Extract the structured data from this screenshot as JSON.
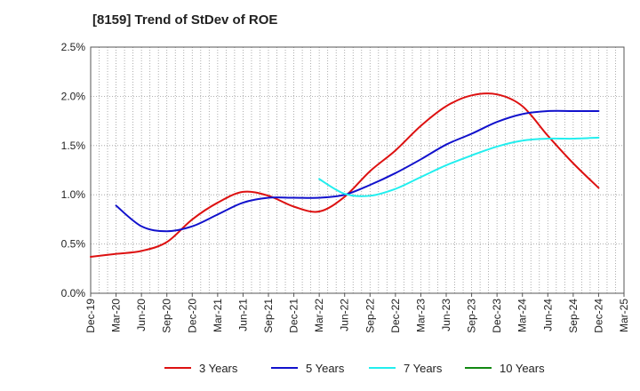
{
  "chart_data": {
    "type": "line",
    "title": "[8159]  Trend of StDev of ROE",
    "x": [
      "Dec-19",
      "Mar-20",
      "Jun-20",
      "Sep-20",
      "Dec-20",
      "Mar-21",
      "Jun-21",
      "Sep-21",
      "Dec-21",
      "Mar-22",
      "Jun-22",
      "Sep-22",
      "Dec-22",
      "Mar-23",
      "Jun-23",
      "Sep-23",
      "Dec-23",
      "Mar-24",
      "Jun-24",
      "Sep-24",
      "Dec-24",
      "Mar-25"
    ],
    "y_ticks": [
      "0.0%",
      "0.5%",
      "1.0%",
      "1.5%",
      "2.0%",
      "2.5%"
    ],
    "ylim": [
      0,
      2.5
    ],
    "yunit": "%",
    "grid": "vertical and horizontal dotted",
    "legend_position": "bottom",
    "series": [
      {
        "name": "3 Years",
        "color": "#dd1111",
        "values": [
          0.37,
          0.4,
          0.43,
          0.52,
          0.75,
          0.92,
          1.03,
          0.99,
          0.88,
          0.83,
          0.98,
          1.24,
          1.45,
          1.7,
          1.9,
          2.01,
          2.02,
          1.9,
          1.6,
          1.32,
          1.07,
          null
        ]
      },
      {
        "name": "5 Years",
        "color": "#1111cc",
        "values": [
          null,
          0.89,
          0.68,
          0.63,
          0.68,
          0.8,
          0.92,
          0.97,
          0.97,
          0.97,
          1.0,
          1.1,
          1.22,
          1.36,
          1.51,
          1.62,
          1.74,
          1.82,
          1.85,
          1.85,
          1.85,
          null
        ]
      },
      {
        "name": "7 Years",
        "color": "#22eeee",
        "values": [
          null,
          null,
          null,
          null,
          null,
          null,
          null,
          null,
          null,
          1.16,
          1.01,
          0.99,
          1.06,
          1.18,
          1.3,
          1.4,
          1.49,
          1.55,
          1.57,
          1.57,
          1.58,
          null
        ]
      },
      {
        "name": "10 Years",
        "color": "#118811",
        "values": [
          null,
          null,
          null,
          null,
          null,
          null,
          null,
          null,
          null,
          null,
          null,
          null,
          null,
          null,
          null,
          null,
          null,
          null,
          null,
          null,
          null,
          null
        ]
      }
    ]
  }
}
